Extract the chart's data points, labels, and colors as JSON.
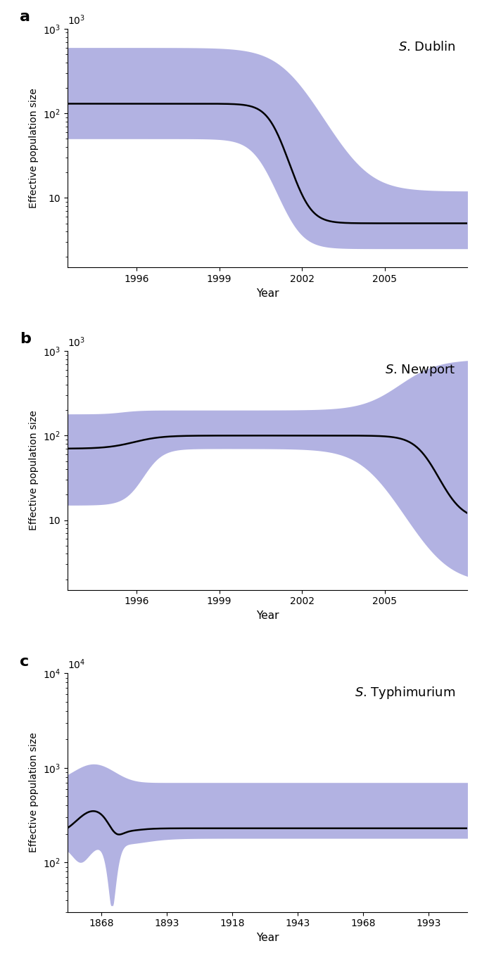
{
  "panel_a": {
    "label": "a",
    "title": "S. Dublin",
    "title_italic_part": "S.",
    "xmin": 1993.5,
    "xmax": 2008.0,
    "ymin": 1.5,
    "ymax": 1000,
    "xticks": [
      1996,
      1999,
      2002,
      2005
    ],
    "yticks": [
      10,
      100,
      1000
    ],
    "xlabel": "Year",
    "ylabel": "Effective population size"
  },
  "panel_b": {
    "label": "b",
    "title": "S. Newport",
    "title_italic_part": "S.",
    "xmin": 1993.5,
    "xmax": 2008.0,
    "ymin": 1.5,
    "ymax": 1000,
    "xticks": [
      1996,
      1999,
      2002,
      2005
    ],
    "xlabel": "Year",
    "ylabel": "Effective population size"
  },
  "panel_c": {
    "label": "c",
    "title": "S. Typhimurium",
    "title_italic_part": "S.",
    "xmin": 1855,
    "xmax": 2008,
    "ymin": 30,
    "ymax": 10000,
    "xticks": [
      1868,
      1893,
      1918,
      1943,
      1968,
      1993
    ],
    "xlabel": "Year",
    "ylabel": "Effective population size"
  },
  "fill_color": "#8080d0",
  "fill_alpha": 0.6,
  "line_color": "#000000",
  "line_width": 1.8
}
